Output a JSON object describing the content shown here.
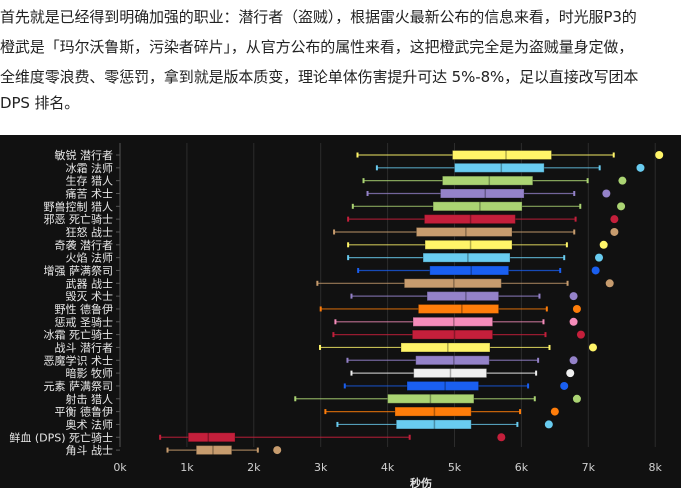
{
  "article": {
    "lines": [
      "首先就是已经得到明确加强的职业：潜行者（盗贼），根据雷火最新公布的信息来看，时光服P3的",
      "橙武是「玛尔沃鲁斯，污染者碎片」，从官方公布的属性来看，这把橙武完全是为盗贼量身定做，",
      "全维度零浪费、零惩罚，拿到就是版本质变，理论单体伤害提升可达 5%-8%，足以直接改写团本",
      "DPS 排名。"
    ]
  },
  "chart_data": {
    "type": "box",
    "orientation": "horizontal",
    "xlabel": "秒伤",
    "xlim": [
      0,
      8000
    ],
    "xticks": [
      0,
      1000,
      2000,
      3000,
      4000,
      5000,
      6000,
      7000,
      8000
    ],
    "xtick_labels": [
      "0k",
      "1k",
      "2k",
      "3k",
      "4k",
      "5k",
      "6k",
      "7k",
      "8k"
    ],
    "grid": true,
    "background": "#111111",
    "specs": [
      {
        "label": "敏锐 潜行者",
        "color": "#fff569",
        "min": 3550,
        "q1": 4970,
        "median": 5770,
        "q3": 6450,
        "max": 7380,
        "outlier": 8060
      },
      {
        "label": "冰霜 法师",
        "color": "#69ccf0",
        "min": 3840,
        "q1": 5000,
        "median": 5700,
        "q3": 6340,
        "max": 7170,
        "outlier": 7780
      },
      {
        "label": "生存 猎人",
        "color": "#abd473",
        "min": 3640,
        "q1": 4820,
        "median": 5520,
        "q3": 6170,
        "max": 6990,
        "outlier": 7510
      },
      {
        "label": "痛苦 术士",
        "color": "#9482c9",
        "min": 3700,
        "q1": 4790,
        "median": 5460,
        "q3": 6040,
        "max": 6790,
        "outlier": 7270
      },
      {
        "label": "野兽控制 猎人",
        "color": "#abd473",
        "min": 3480,
        "q1": 4680,
        "median": 5380,
        "q3": 6010,
        "max": 6880,
        "outlier": 7490
      },
      {
        "label": "邪恶 死亡骑士",
        "color": "#c41f3b",
        "min": 3410,
        "q1": 4550,
        "median": 5240,
        "q3": 5910,
        "max": 6810,
        "outlier": 7390
      },
      {
        "label": "狂怒 战士",
        "color": "#c79c6e",
        "min": 3200,
        "q1": 4430,
        "median": 5170,
        "q3": 5860,
        "max": 6790,
        "outlier": 7390
      },
      {
        "label": "奇袭 潜行者",
        "color": "#fff569",
        "min": 3410,
        "q1": 4560,
        "median": 5240,
        "q3": 5860,
        "max": 6680,
        "outlier": 7230
      },
      {
        "label": "火焰 法师",
        "color": "#69ccf0",
        "min": 3410,
        "q1": 4530,
        "median": 5200,
        "q3": 5830,
        "max": 6640,
        "outlier": 7160
      },
      {
        "label": "增强 萨满祭司",
        "color": "#1a5ff0",
        "min": 3560,
        "q1": 4630,
        "median": 5250,
        "q3": 5810,
        "max": 6580,
        "outlier": 7110
      },
      {
        "label": "武器 战士",
        "color": "#c79c6e",
        "min": 2950,
        "q1": 4250,
        "median": 4990,
        "q3": 5700,
        "max": 6690,
        "outlier": 7320
      },
      {
        "label": "毁灭 术士",
        "color": "#9482c9",
        "min": 3460,
        "q1": 4590,
        "median": 5170,
        "q3": 5660,
        "max": 6270,
        "outlier": 6780
      },
      {
        "label": "野性 德鲁伊",
        "color": "#ff7d0a",
        "min": 3000,
        "q1": 4460,
        "median": 5110,
        "q3": 5660,
        "max": 6380,
        "outlier": 6830
      },
      {
        "label": "惩戒 圣骑士",
        "color": "#f58cba",
        "min": 3220,
        "q1": 4380,
        "median": 4990,
        "q3": 5570,
        "max": 6330,
        "outlier": 6780
      },
      {
        "label": "冰霜 死亡骑士",
        "color": "#c41f3b",
        "min": 3190,
        "q1": 4370,
        "median": 5000,
        "q3": 5570,
        "max": 6360,
        "outlier": 6890
      },
      {
        "label": "战斗 潜行者",
        "color": "#fff569",
        "min": 2990,
        "q1": 4200,
        "median": 4900,
        "q3": 5530,
        "max": 6420,
        "outlier": 7070
      },
      {
        "label": "恶魔学识 术士",
        "color": "#9482c9",
        "min": 3400,
        "q1": 4420,
        "median": 4990,
        "q3": 5520,
        "max": 6250,
        "outlier": 6780
      },
      {
        "label": "暗影 牧师",
        "color": "#f0f0f0",
        "min": 3460,
        "q1": 4390,
        "median": 4940,
        "q3": 5480,
        "max": 6220,
        "outlier": 6730
      },
      {
        "label": "元素 萨满祭司",
        "color": "#1a5ff0",
        "min": 3360,
        "q1": 4290,
        "median": 4860,
        "q3": 5360,
        "max": 6100,
        "outlier": 6640
      },
      {
        "label": "射击 猎人",
        "color": "#abd473",
        "min": 2620,
        "q1": 4000,
        "median": 4640,
        "q3": 5290,
        "max": 6200,
        "outlier": 6830
      },
      {
        "label": "平衡 德鲁伊",
        "color": "#ff7d0a",
        "min": 3070,
        "q1": 4110,
        "median": 4700,
        "q3": 5250,
        "max": 5980,
        "outlier": 6500
      },
      {
        "label": "奥术 法师",
        "color": "#69ccf0",
        "min": 3250,
        "q1": 4130,
        "median": 4700,
        "q3": 5250,
        "max": 5940,
        "outlier": 6410
      },
      {
        "label": "鲜血 (DPS) 死亡骑士",
        "color": "#c41f3b",
        "min": 600,
        "q1": 1020,
        "median": 1320,
        "q3": 1720,
        "max": 4330,
        "outlier": 5700
      },
      {
        "label": "角斗 战士",
        "color": "#c79c6e",
        "min": 710,
        "q1": 1140,
        "median": 1390,
        "q3": 1670,
        "max": 2060,
        "outlier": 2350
      }
    ]
  }
}
